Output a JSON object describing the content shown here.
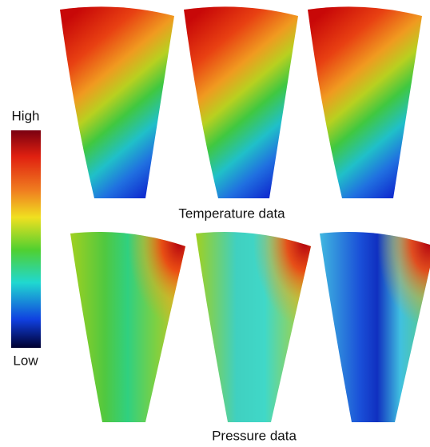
{
  "colorbar": {
    "high": "High",
    "low": "Low"
  },
  "temperature": {
    "label": "Temperature data"
  },
  "pressure": {
    "label": "Pressure data"
  }
}
